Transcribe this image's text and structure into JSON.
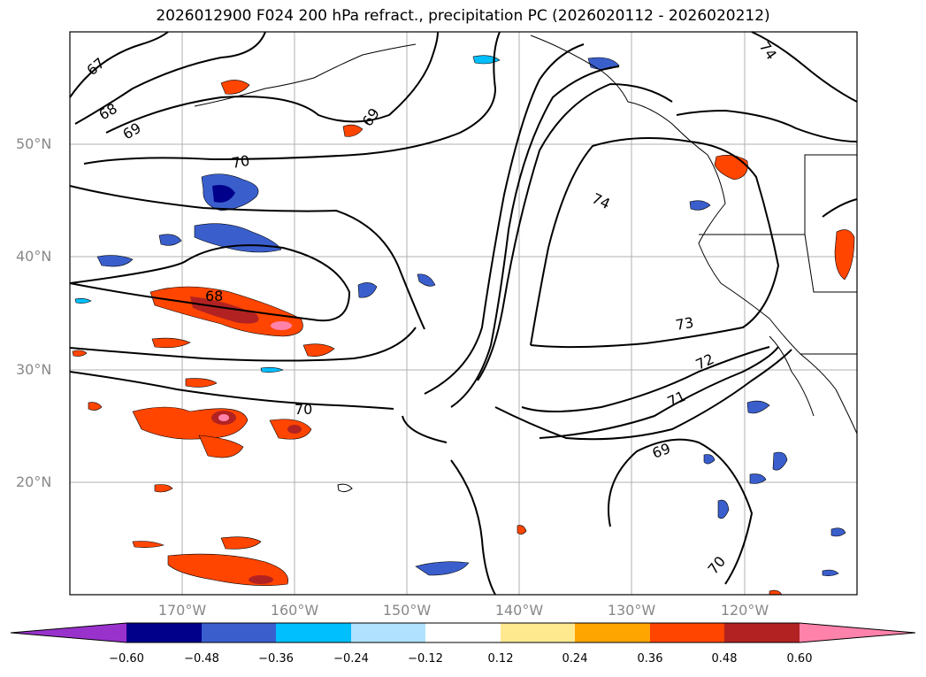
{
  "title": "2026012900 F024 200 hPa refract., precipitation PC (2026020112 - 2026020212)",
  "map": {
    "lat_labels": [
      "50°N",
      "40°N",
      "30°N",
      "20°N"
    ],
    "lon_labels": [
      "170°W",
      "160°W",
      "150°W",
      "140°W",
      "130°W",
      "120°W"
    ],
    "contour_labels": [
      "67",
      "68",
      "69",
      "69",
      "70",
      "68",
      "70",
      "74",
      "74",
      "73",
      "72",
      "71",
      "69",
      "70"
    ]
  },
  "colorbar": {
    "ticks": [
      "−0.60",
      "−0.48",
      "−0.36",
      "−0.24",
      "−0.12",
      "0.12",
      "0.24",
      "0.36",
      "0.48",
      "0.60"
    ],
    "colors": [
      "#9932cc",
      "#00008b",
      "#3a5fcd",
      "#00bfff",
      "#b0e2ff",
      "#ffffff",
      "#ffe98f",
      "#ffa500",
      "#ff4500",
      "#b22222",
      "#ff82ab"
    ]
  }
}
